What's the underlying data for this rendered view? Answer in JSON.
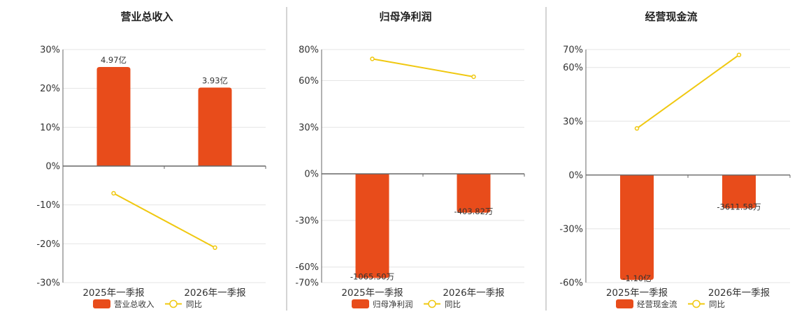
{
  "colors": {
    "bar": "#e84c1b",
    "line": "#f0c810",
    "grid": "#e4e4e4",
    "axis": "#666666",
    "divider": "#aaaaaa"
  },
  "chart_data": [
    {
      "type": "bar",
      "title": "营业总收入",
      "categories": [
        "2025年一季报",
        "2026年一季报"
      ],
      "yticks": [
        30,
        20,
        10,
        0,
        -10,
        -20,
        -30
      ],
      "ytick_labels": [
        "30%",
        "20%",
        "10%",
        "0%",
        "-10%",
        "-20%",
        "-30%"
      ],
      "ylim": [
        -30,
        30
      ],
      "series": [
        {
          "name": "营业总收入",
          "type": "bar",
          "values": [
            25.5,
            20.2
          ],
          "labels": [
            "4.97亿",
            "3.93亿"
          ]
        },
        {
          "name": "同比",
          "type": "line",
          "values": [
            -7,
            -21
          ]
        }
      ],
      "legend": "bottom"
    },
    {
      "type": "bar",
      "title": "归母净利润",
      "categories": [
        "2025年一季报",
        "2026年一季报"
      ],
      "yticks": [
        80,
        60,
        30,
        0,
        -30,
        -60,
        -70
      ],
      "ytick_labels": [
        "80%",
        "60%",
        "30%",
        "0%",
        "-30%",
        "-60%",
        "-70%"
      ],
      "ylim": [
        -70,
        80
      ],
      "series": [
        {
          "name": "归母净利润",
          "type": "bar",
          "values": [
            -67,
            -25
          ],
          "labels": [
            "-1065.50万",
            "-403.82万"
          ]
        },
        {
          "name": "同比",
          "type": "line",
          "values": [
            74,
            62.5
          ]
        }
      ],
      "legend": "bottom"
    },
    {
      "type": "bar",
      "title": "经营现金流",
      "categories": [
        "2025年一季报",
        "2026年一季报"
      ],
      "yticks": [
        70,
        60,
        30,
        0,
        -30,
        -60
      ],
      "ytick_labels": [
        "70%",
        "60%",
        "30%",
        "0%",
        "-30%",
        "-60%"
      ],
      "ylim": [
        -60,
        70
      ],
      "series": [
        {
          "name": "经营现金流",
          "type": "bar",
          "values": [
            -58.5,
            -18.5
          ],
          "labels": [
            "-1.10亿",
            "-3611.58万"
          ]
        },
        {
          "name": "同比",
          "type": "line",
          "values": [
            26,
            67
          ]
        }
      ],
      "legend": "bottom"
    }
  ]
}
